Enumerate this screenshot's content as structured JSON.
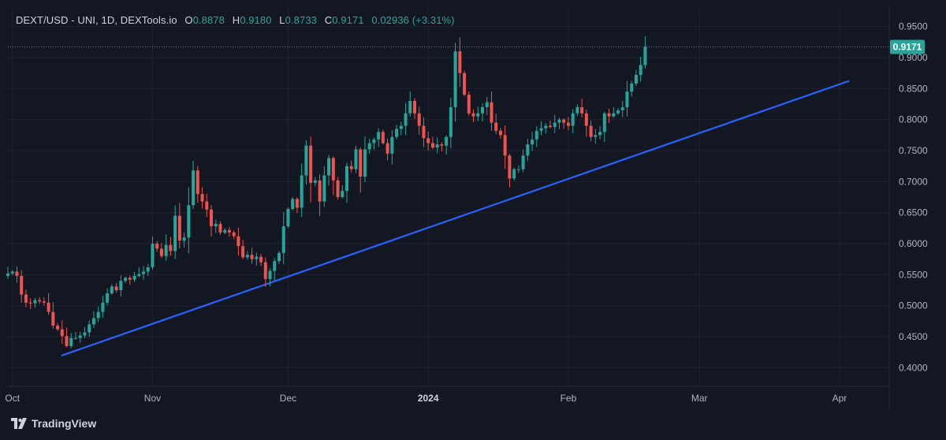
{
  "legend": {
    "symbol": "DEXT/USD - UNI, 1D, DEXTools.io",
    "open_label": "O",
    "open": "0.8878",
    "high_label": "H",
    "high": "0.9180",
    "low_label": "L",
    "low": "0.8733",
    "close_label": "C",
    "close": "0.9171",
    "change": "0.02936 (+3.31%)"
  },
  "brand": {
    "name": "TradingView",
    "logo_icon": "tradingview-logo-icon"
  },
  "colors": {
    "background": "#131722",
    "up": "#26a69a",
    "down": "#ef5350",
    "trendline": "#2962ff",
    "grid": "#1f2433",
    "text": "#b2b5be"
  },
  "chart_data": {
    "type": "candlestick",
    "ylim": [
      0.37,
      0.98
    ],
    "ytick_labels": [
      "0.4000",
      "0.4500",
      "0.5000",
      "0.5500",
      "0.6000",
      "0.6500",
      "0.7000",
      "0.7500",
      "0.8000",
      "0.8500",
      "0.9000",
      "0.9500"
    ],
    "yticks": [
      0.4,
      0.45,
      0.5,
      0.55,
      0.6,
      0.65,
      0.7,
      0.75,
      0.8,
      0.85,
      0.9,
      0.95
    ],
    "x_start": "2023-09-30",
    "x_end": "2024-04-12",
    "xticks": [
      {
        "label": "Oct",
        "date": "2023-10-01",
        "bold": false
      },
      {
        "label": "Nov",
        "date": "2023-11-01",
        "bold": false
      },
      {
        "label": "Dec",
        "date": "2023-12-01",
        "bold": false
      },
      {
        "label": "2024",
        "date": "2024-01-01",
        "bold": true
      },
      {
        "label": "Feb",
        "date": "2024-02-01",
        "bold": false
      },
      {
        "label": "Mar",
        "date": "2024-03-01",
        "bold": false
      },
      {
        "label": "Apr",
        "date": "2024-04-01",
        "bold": false
      }
    ],
    "last_price": 0.9171,
    "last_price_label": "0.9171",
    "grid": true,
    "candles_start": "2023-09-30",
    "closes": [
      0.552,
      0.555,
      0.548,
      0.518,
      0.505,
      0.504,
      0.509,
      0.507,
      0.505,
      0.49,
      0.468,
      0.462,
      0.451,
      0.435,
      0.448,
      0.448,
      0.452,
      0.457,
      0.47,
      0.48,
      0.49,
      0.505,
      0.52,
      0.531,
      0.525,
      0.54,
      0.545,
      0.542,
      0.548,
      0.551,
      0.555,
      0.562,
      0.6,
      0.592,
      0.58,
      0.598,
      0.588,
      0.645,
      0.605,
      0.61,
      0.662,
      0.718,
      0.68,
      0.668,
      0.655,
      0.628,
      0.632,
      0.618,
      0.622,
      0.618,
      0.612,
      0.596,
      0.578,
      0.582,
      0.575,
      0.579,
      0.57,
      0.543,
      0.556,
      0.572,
      0.585,
      0.628,
      0.656,
      0.672,
      0.658,
      0.71,
      0.758,
      0.698,
      0.702,
      0.668,
      0.71,
      0.738,
      0.702,
      0.675,
      0.685,
      0.725,
      0.72,
      0.752,
      0.708,
      0.752,
      0.762,
      0.768,
      0.78,
      0.762,
      0.745,
      0.772,
      0.785,
      0.79,
      0.81,
      0.83,
      0.81,
      0.79,
      0.77,
      0.762,
      0.755,
      0.76,
      0.758,
      0.772,
      0.82,
      0.91,
      0.875,
      0.84,
      0.81,
      0.805,
      0.81,
      0.82,
      0.828,
      0.795,
      0.782,
      0.775,
      0.742,
      0.705,
      0.72,
      0.72,
      0.742,
      0.76,
      0.768,
      0.782,
      0.786,
      0.79,
      0.788,
      0.795,
      0.8,
      0.795,
      0.79,
      0.81,
      0.82,
      0.81,
      0.79,
      0.772,
      0.775,
      0.78,
      0.81,
      0.805,
      0.81,
      0.815,
      0.82,
      0.845,
      0.858,
      0.872,
      0.888,
      0.9171
    ],
    "trendline": [
      {
        "date": "2023-10-12",
        "value": 0.42
      },
      {
        "date": "2024-04-03",
        "value": 0.862
      }
    ]
  }
}
